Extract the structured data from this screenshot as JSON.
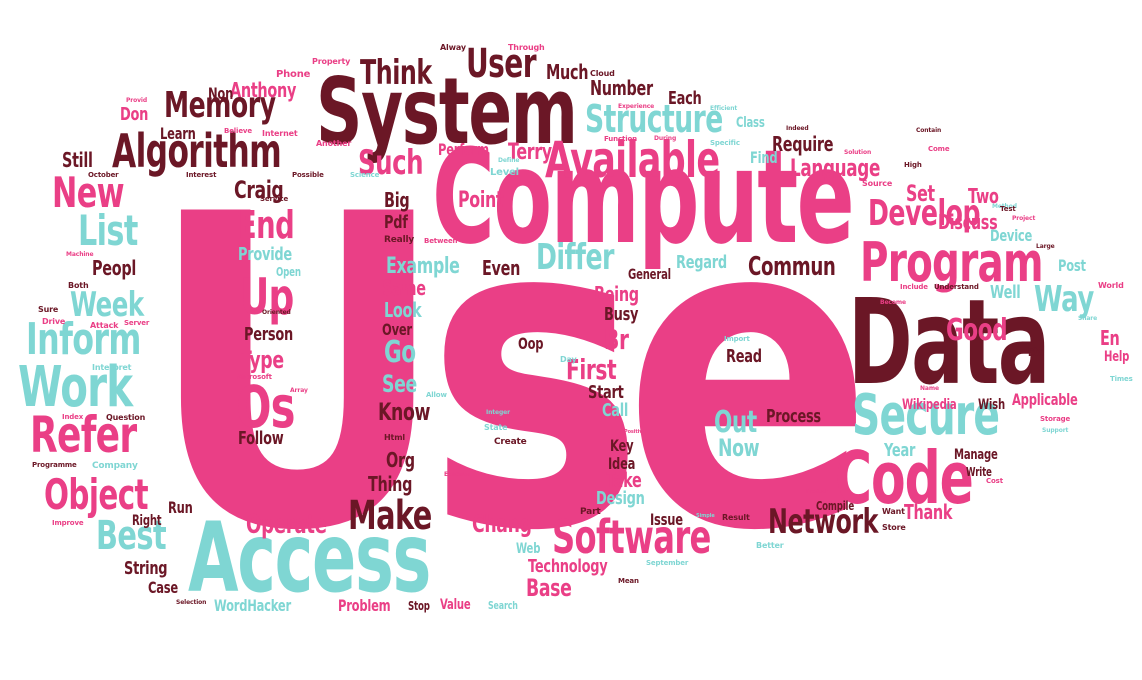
{
  "colors": {
    "pink": "#ea3f86",
    "maroon": "#6b1726",
    "teal": "#7fd6d3",
    "light_pink": "#f47fab"
  },
  "words": {
    "use": "Use",
    "compute": "Compute",
    "system": "System",
    "data": "Data",
    "access": "Access",
    "code": "Code",
    "secure": "Secure",
    "available": "Available",
    "algorithm": "Algorithm",
    "program": "Program",
    "software": "Software",
    "work": "Work",
    "refer": "Refer",
    "object": "Object",
    "inform": "Inform",
    "os": "Os",
    "memory": "Memory",
    "structure": "Structure",
    "user": "User",
    "think": "Think",
    "make": "Make",
    "best": "Best",
    "network": "Network",
    "develop": "Develop",
    "list": "List",
    "new": "New",
    "end": "End",
    "up": "Up",
    "differ": "Differ",
    "week": "Week",
    "way": "Way",
    "good": "Good",
    "language": "Language",
    "commun": "Commun",
    "operate": "Operate",
    "such": "Such",
    "craig": "Craig",
    "anthony": "Anthony",
    "don": "Don",
    "learn": "Learn",
    "still": "Still",
    "non": "Non",
    "much": "Much",
    "number": "Number",
    "each": "Each",
    "terry": "Terry",
    "perform": "Perform",
    "point": "Point",
    "big": "Big",
    "pdf": "Pdf",
    "example": "Example",
    "even": "Even",
    "same": "Same",
    "look": "Look",
    "being": "Being",
    "busy": "Busy",
    "first": "First",
    "oop": "Oop",
    "br": "Br",
    "read": "Read",
    "start": "Start",
    "call": "Call",
    "out": "Out",
    "now": "Now",
    "process": "Process",
    "key": "Key",
    "idea": "Idea",
    "take": "Take",
    "design": "Design",
    "year": "Year",
    "manage": "Manage",
    "write": "Write",
    "issue": "Issue",
    "chang": "Chang",
    "web": "Web",
    "technology": "Technology",
    "base": "Base",
    "problem": "Problem",
    "value": "Value",
    "stop": "Stop",
    "search": "Search",
    "string": "String",
    "case": "Case",
    "wordhacker": "WordHacker",
    "run": "Run",
    "right": "Right",
    "thing": "Thing",
    "org": "Org",
    "know": "Know",
    "see": "See",
    "go": "Go",
    "over": "Over",
    "person": "Person",
    "type": "Type",
    "follow": "Follow",
    "peopl": "Peopl",
    "provide": "Provide",
    "open": "Open",
    "regard": "Regard",
    "general": "General",
    "set": "Set",
    "two": "Two",
    "discuss": "Discuss",
    "device": "Device",
    "post": "Post",
    "well": "Well",
    "en": "En",
    "help": "Help",
    "etc": "Etc",
    "wikipedia": "Wikipedia",
    "wish": "Wish",
    "applicable": "Applicable",
    "thank": "Thank",
    "compile": "Compile",
    "require": "Require",
    "find": "Find",
    "class": "Class",
    "phone": "Phone",
    "property": "Property",
    "through": "Through",
    "alway": "Alway",
    "cloud": "Cloud",
    "internet": "Internet",
    "another": "Another",
    "believe": "Believe",
    "possible": "Possible",
    "interest": "Interest",
    "october": "October",
    "service": "Service",
    "both": "Both",
    "sure": "Sure",
    "drive": "Drive",
    "attack": "Attack",
    "server": "Server",
    "microsoft": "Microsoft",
    "interpret": "Interpret",
    "index": "Index",
    "question": "Question",
    "programme": "Programme",
    "company": "Company",
    "improve": "Improve",
    "selection": "Selection",
    "html": "Html",
    "create": "Create",
    "state": "State",
    "integer": "Integer",
    "allow": "Allow",
    "day": "Day",
    "import": "Import",
    "understand": "Understand",
    "include": "Include",
    "world": "World",
    "storage": "Storage",
    "mean": "Mean",
    "september": "September",
    "better": "Better",
    "result": "Result",
    "store": "Store",
    "want": "Want",
    "cost": "Cost",
    "part": "Part",
    "execute": "Execute",
    "solution": "Solution",
    "high": "High",
    "source": "Source",
    "level": "Level",
    "function": "Function",
    "experience": "Experience",
    "specific": "Specific",
    "science": "Science",
    "really": "Really",
    "between": "Between",
    "method": "Method",
    "project": "Project",
    "test": "Test",
    "large": "Large",
    "come": "Come",
    "times": "Times",
    "share": "Share",
    "become": "Become",
    "support": "Support",
    "array": "Array",
    "oriented": "Oriented",
    "machine": "Machine",
    "efficient": "Efficient",
    "indeed": "Indeed",
    "contain": "Contain",
    "define": "Define",
    "during": "During",
    "name": "Name",
    "product": "Product",
    "provid": "Provid",
    "positiv": "Positiv",
    "simple": "Simple"
  }
}
